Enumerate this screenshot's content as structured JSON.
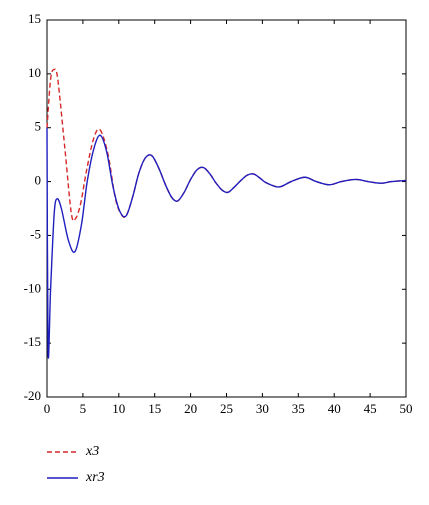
{
  "chart_data": {
    "type": "line",
    "xlim": [
      0,
      50
    ],
    "xticks": [
      0,
      5,
      10,
      15,
      20,
      25,
      30,
      35,
      40,
      45,
      50
    ],
    "ylim": [
      -20,
      15
    ],
    "yticks": [
      -20,
      -15,
      -10,
      -5,
      0,
      5,
      10,
      15
    ],
    "series": [
      {
        "name": "x3",
        "color": "#d62728",
        "dash": true,
        "x": [
          0,
          0.5,
          1,
          1.5,
          2.5,
          3.4,
          4,
          4.7,
          5.5,
          6.5,
          7.4,
          8.5,
          9.5,
          10.3,
          11,
          11.9,
          12.8,
          13.7,
          14.6,
          15.6,
          16.5,
          17.4,
          18.2,
          19.1,
          20,
          20.9,
          21.8,
          22.7,
          23.5,
          24.4,
          25.2,
          26.1,
          27,
          27.9,
          28.8,
          29.7,
          30.5,
          32.3,
          34,
          35.9,
          37.5,
          39.3,
          41,
          43,
          44.7,
          46.5,
          48,
          50
        ],
        "values": [
          5,
          9.5,
          10.4,
          9.5,
          3,
          -3,
          -3.4,
          -2,
          1,
          4,
          4.8,
          2.5,
          -1.5,
          -3.0,
          -3.2,
          -1.5,
          0.8,
          2.2,
          2.4,
          1.2,
          -0.3,
          -1.5,
          -1.8,
          -1.0,
          0.2,
          1.1,
          1.3,
          0.7,
          -0.1,
          -0.8,
          -1.0,
          -0.5,
          0.1,
          0.6,
          0.7,
          0.3,
          -0.1,
          -0.5,
          0,
          0.4,
          0,
          -0.3,
          0,
          0.2,
          0,
          -0.15,
          0,
          0.1
        ]
      },
      {
        "name": "xr3",
        "color": "#1f1fbf",
        "dash": false,
        "x": [
          0,
          0.15,
          0.5,
          1,
          1.4,
          2,
          3,
          3.9,
          4.8,
          5.6,
          6.5,
          7.4,
          8.3,
          9.2,
          10.1,
          11,
          11.9,
          12.8,
          13.7,
          14.6,
          15.6,
          16.5,
          17.4,
          18.2,
          19.1,
          20,
          20.9,
          21.8,
          22.7,
          23.5,
          24.4,
          25.2,
          26.1,
          27,
          27.9,
          28.8,
          29.7,
          30.5,
          32.3,
          34,
          35.9,
          37.5,
          39.3,
          41,
          43,
          44.7,
          46.5,
          48,
          50
        ],
        "values": [
          5,
          -15.8,
          -10,
          -3,
          -1.6,
          -2.5,
          -5.5,
          -6.5,
          -4,
          0,
          3,
          4.3,
          2.8,
          -0.5,
          -2.7,
          -3.2,
          -1.5,
          0.8,
          2.2,
          2.4,
          1.2,
          -0.3,
          -1.5,
          -1.8,
          -1.0,
          0.2,
          1.1,
          1.3,
          0.7,
          -0.1,
          -0.8,
          -1.0,
          -0.5,
          0.1,
          0.6,
          0.7,
          0.3,
          -0.1,
          -0.5,
          0,
          0.4,
          0,
          -0.3,
          0,
          0.2,
          0,
          -0.15,
          0,
          0.1
        ]
      }
    ]
  }
}
